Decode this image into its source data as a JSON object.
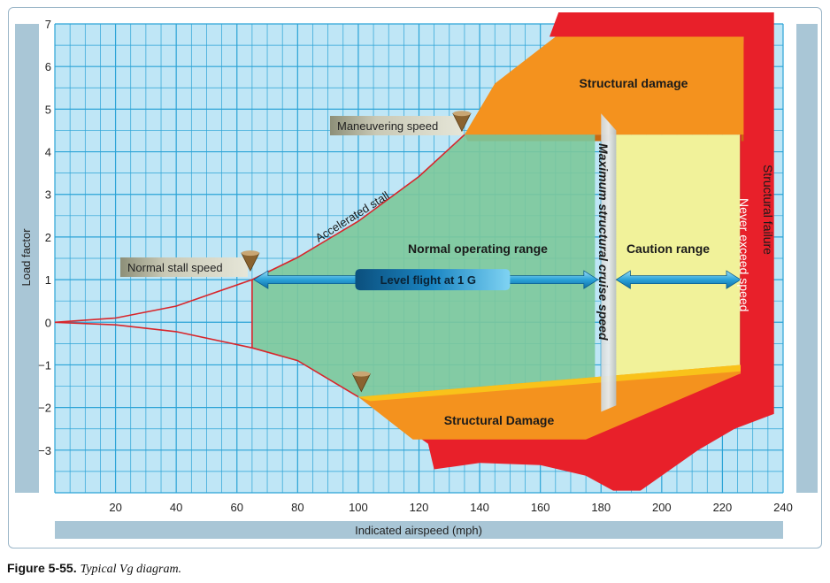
{
  "caption": {
    "figure": "Figure 5-55.",
    "text": "Typical Vg diagram."
  },
  "chart_data": {
    "type": "area",
    "xlabel": "Indicated airspeed (mph)",
    "ylabel": "Load factor",
    "xlim": [
      0,
      240
    ],
    "ylim": [
      -4,
      7
    ],
    "x_ticks": [
      20,
      40,
      60,
      80,
      100,
      120,
      140,
      160,
      180,
      200,
      220,
      240
    ],
    "y_ticks": [
      -3,
      -2,
      -1,
      0,
      1,
      2,
      3,
      4,
      5,
      6,
      7
    ],
    "grid": true,
    "positive_stall_curve": [
      [
        0,
        0
      ],
      [
        20,
        0.1
      ],
      [
        40,
        0.38
      ],
      [
        65,
        1.0
      ],
      [
        80,
        1.52
      ],
      [
        100,
        2.37
      ],
      [
        120,
        3.42
      ],
      [
        135,
        4.4
      ]
    ],
    "negative_stall_curve": [
      [
        0,
        0
      ],
      [
        20,
        -0.06
      ],
      [
        40,
        -0.22
      ],
      [
        65,
        -0.6
      ],
      [
        80,
        -0.9
      ],
      [
        100,
        -1.75
      ]
    ],
    "maneuvering_speed": {
      "x": 135,
      "y": 4.4
    },
    "normal_stall_speed": {
      "x": 65,
      "y": 1.0
    },
    "max_structural_cruise_speed": 180,
    "never_exceed_speed": 225,
    "labels": {
      "maneuvering_speed": "Maneuvering speed",
      "normal_stall_speed": "Normal stall speed",
      "accelerated_stall": "Accelerated stall",
      "normal_operating_range": "Normal operating range",
      "caution_range": "Caution range",
      "level_flight": "Level flight at 1 G",
      "structural_damage_top": "Structural damage",
      "structural_damage_bottom": "Structural Damage",
      "max_cruise": "Maximum structural cruise speed",
      "never_exceed": "Never exceed speed",
      "structural_failure": "Structural failure"
    },
    "colors": {
      "grid_bg": "#bfe6f6",
      "grid_line": "#2ba3d6",
      "normal_range": "#7cc89b",
      "caution_range": "#f1f29a",
      "structural_damage": "#f4921e",
      "structural_failure": "#e8202a",
      "axis_band": "#a9c6d6"
    }
  }
}
